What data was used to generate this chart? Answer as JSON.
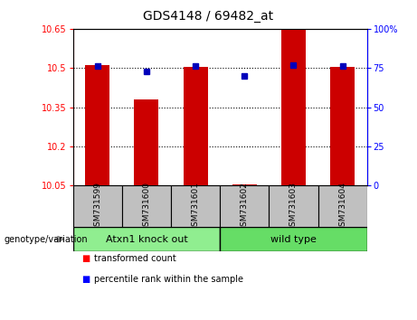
{
  "title": "GDS4148 / 69482_at",
  "samples": [
    "GSM731599",
    "GSM731600",
    "GSM731601",
    "GSM731602",
    "GSM731603",
    "GSM731604"
  ],
  "bar_values": [
    10.51,
    10.38,
    10.505,
    10.055,
    10.65,
    10.505
  ],
  "percentile_values": [
    76,
    73,
    76,
    70,
    77,
    76
  ],
  "bar_base": 10.05,
  "ylim_left": [
    10.05,
    10.65
  ],
  "ylim_right": [
    0,
    100
  ],
  "yticks_left": [
    10.05,
    10.2,
    10.35,
    10.5,
    10.65
  ],
  "ytick_labels_left": [
    "10.05",
    "10.2",
    "10.35",
    "10.5",
    "10.65"
  ],
  "yticks_right": [
    0,
    25,
    50,
    75,
    100
  ],
  "ytick_labels_right": [
    "0",
    "25",
    "50",
    "75",
    "100%"
  ],
  "hlines": [
    10.2,
    10.35,
    10.5
  ],
  "groups": [
    {
      "label": "Atxn1 knock out",
      "samples": [
        0,
        1,
        2
      ]
    },
    {
      "label": "wild type",
      "samples": [
        3,
        4,
        5
      ]
    }
  ],
  "group_colors": [
    "#90EE90",
    "#66DD66"
  ],
  "bar_color": "#CC0000",
  "dot_color": "#0000BB",
  "bar_width": 0.5,
  "xlabel_area_color": "#C0C0C0",
  "legend_red_label": "transformed count",
  "legend_blue_label": "percentile rank within the sample",
  "genotype_label": "genotype/variation"
}
